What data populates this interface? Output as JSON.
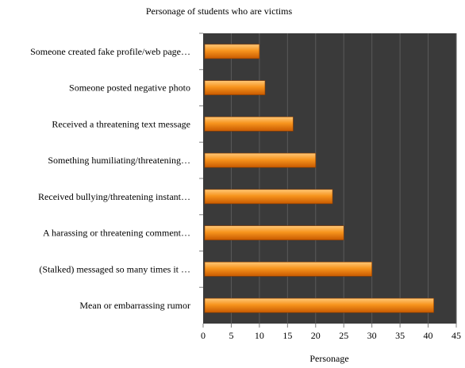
{
  "chart_data": {
    "type": "bar",
    "orientation": "horizontal",
    "title": "Personage of students who are victims",
    "xlabel": "Personage",
    "ylabel": "",
    "xlim": [
      0,
      45
    ],
    "xticks": [
      0,
      5,
      10,
      15,
      20,
      25,
      30,
      35,
      40,
      45
    ],
    "grid": true,
    "categories": [
      "Someone created fake profile/web page…",
      "Someone posted negative photo",
      "Received a threatening text message",
      "Something humiliating/threatening…",
      "Received bullying/threatening instant…",
      "A harassing or threatening comment…",
      "(Stalked) messaged so many times it …",
      "Mean or embarrassing rumor"
    ],
    "values": [
      10,
      11,
      16,
      20,
      23,
      25,
      30,
      41
    ]
  },
  "colors": {
    "plot_background": "#3a3a3a",
    "gridline": "#5a5a5a",
    "bar_fill_light": "#ffc878",
    "bar_fill_mid": "#f7941d",
    "bar_fill_dark": "#c85a00",
    "bar_stroke": "#8a3c00",
    "text": "#000000"
  }
}
